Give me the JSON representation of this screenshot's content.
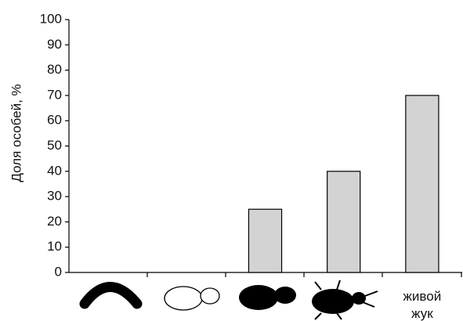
{
  "chart_data": {
    "type": "bar",
    "y_label": "Доля особей, %",
    "categories": [
      null,
      null,
      null,
      null,
      "живой жук"
    ],
    "values": [
      0,
      0,
      25,
      40,
      70
    ],
    "color": "#d3d3d3",
    "ylim": [
      0,
      100
    ],
    "yticks": [
      0,
      10,
      20,
      30,
      40,
      50,
      60,
      70,
      80,
      90,
      100
    ],
    "grid": false
  }
}
